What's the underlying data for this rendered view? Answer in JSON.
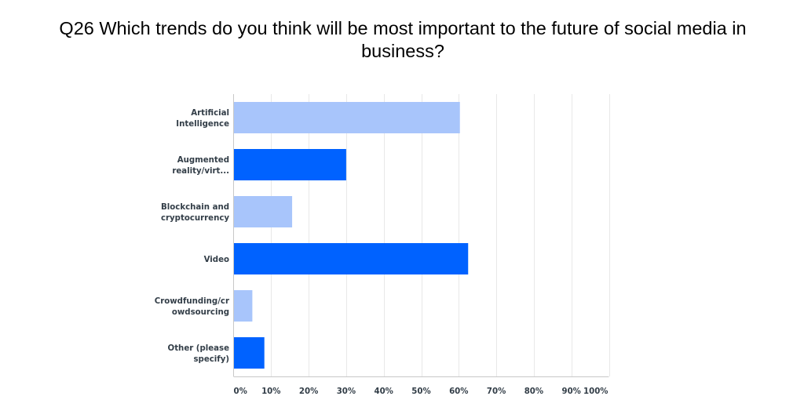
{
  "chart_data": {
    "type": "bar",
    "orientation": "horizontal",
    "title": "Q26 Which trends do you think will be most important to the future of social media in business?",
    "categories": [
      [
        "Artificial",
        "Intelligence"
      ],
      [
        "Augmented",
        "reality/virt..."
      ],
      [
        "Blockchain and",
        "cryptocurrency"
      ],
      [
        "Video"
      ],
      [
        "Crowdfunding/cr",
        "owdsourcing"
      ],
      [
        "Other (please",
        "specify)"
      ]
    ],
    "values": [
      60.3,
      30.0,
      15.6,
      62.5,
      5.0,
      8.2
    ],
    "value_unit": "%",
    "xlim": [
      0,
      100
    ],
    "x_ticks": [
      "0%",
      "10%",
      "20%",
      "30%",
      "40%",
      "50%",
      "60%",
      "70%",
      "80%",
      "90%",
      "100%"
    ],
    "grid": "vertical",
    "bar_colors": [
      "#a8c5fb",
      "#0062ff",
      "#a8c5fb",
      "#0062ff",
      "#a8c5fb",
      "#0062ff"
    ],
    "grid_color": "#e8e8e8",
    "axis_color": "#c8c8c8"
  }
}
